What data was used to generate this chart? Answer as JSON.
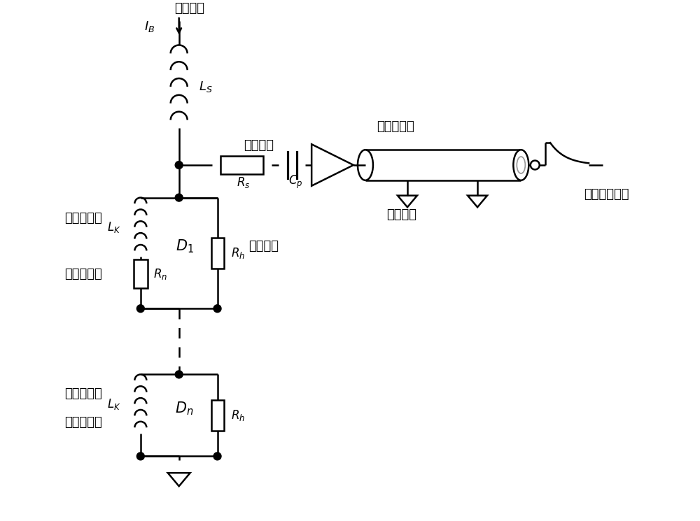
{
  "bg_color": "#ffffff",
  "lc": "#000000",
  "lw": 1.8,
  "labels": {
    "dc_bias": "直流偏置",
    "I_B": "$I_B$",
    "L_S": "$L_S$",
    "series_R": "串联电阻",
    "R_s": "$R_s$",
    "C_p": "$C_p$",
    "low_temp_amp": "低温放大器",
    "RF_out": "射频输出",
    "output_pulse": "输出电压脉冲",
    "avalanche1": "雪崩纳米线",
    "avalanche2": "雪崩纳米线",
    "L_K1": "$L_K$",
    "L_K2": "$L_K$",
    "D_1": "$D_1$",
    "D_n": "$D_n$",
    "R_h1": "$R_h$",
    "R_h2": "$R_h$",
    "R_n": "$R_n$",
    "parallel_R": "并联电阻",
    "light_resp": "光响应单元",
    "no_resp": "未响应单元"
  },
  "font_size": 13,
  "font_size_label": 12,
  "figsize": [
    10.0,
    7.45
  ],
  "dpi": 100
}
